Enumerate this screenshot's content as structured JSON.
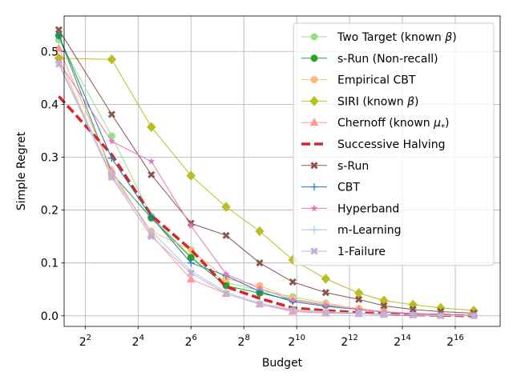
{
  "chart_data": {
    "type": "line",
    "title": "",
    "xlabel": "Budget",
    "ylabel": "Simple Regret",
    "x_scale": "log2",
    "xlim": [
      1.2,
      17.7
    ],
    "ylim": [
      -0.02,
      0.567
    ],
    "x": [
      1,
      3,
      4.5,
      6,
      7.33,
      8.6,
      9.85,
      11.1,
      12.35,
      13.3,
      14.4,
      15.45,
      16.7
    ],
    "xticks": [
      {
        "exp": 2,
        "base": "2",
        "sup": "2"
      },
      {
        "exp": 4,
        "base": "2",
        "sup": "4"
      },
      {
        "exp": 6,
        "base": "2",
        "sup": "6"
      },
      {
        "exp": 8,
        "base": "2",
        "sup": "8"
      },
      {
        "exp": 10,
        "base": "2",
        "sup": "10"
      },
      {
        "exp": 12,
        "base": "2",
        "sup": "12"
      },
      {
        "exp": 14,
        "base": "2",
        "sup": "14"
      },
      {
        "exp": 16,
        "base": "2",
        "sup": "16"
      }
    ],
    "yticks": [
      {
        "v": 0.0,
        "label": "0.0"
      },
      {
        "v": 0.1,
        "label": "0.1"
      },
      {
        "v": 0.2,
        "label": "0.2"
      },
      {
        "v": 0.3,
        "label": "0.3"
      },
      {
        "v": 0.4,
        "label": "0.4"
      },
      {
        "v": 0.5,
        "label": "0.5"
      }
    ],
    "grid": true,
    "legend": {
      "position": "top-right"
    },
    "series": [
      {
        "name": "Two Target (known ",
        "name_symbol": "β",
        "name_end": ")",
        "color": "#98df8a",
        "marker": "circle",
        "dash": "",
        "width": 1,
        "values": [
          0.522,
          0.34,
          0.188,
          0.112,
          0.063,
          0.048,
          0.036,
          0.024,
          0.013,
          0.008,
          0.005,
          0.003,
          0.002
        ]
      },
      {
        "name": "s-Run (Non-recall)",
        "name_symbol": "",
        "name_end": "",
        "color": "#2ca02c",
        "marker": "circle",
        "dash": "",
        "width": 1,
        "values": [
          0.53,
          0.27,
          0.185,
          0.11,
          0.057,
          0.043,
          0.03,
          0.02,
          0.012,
          0.007,
          0.004,
          0.002,
          0.001
        ]
      },
      {
        "name": "Empirical CBT",
        "name_symbol": "",
        "name_end": "",
        "color": "#ffbb78",
        "marker": "circle",
        "dash": "",
        "width": 1,
        "values": [
          0.487,
          0.263,
          0.16,
          0.125,
          0.07,
          0.057,
          0.032,
          0.022,
          0.014,
          0.008,
          0.005,
          0.003,
          0.002
        ]
      },
      {
        "name": "SIRI (known ",
        "name_symbol": "β",
        "name_end": ")",
        "color": "#bcbd22",
        "marker": "diamond",
        "dash": "",
        "width": 1,
        "values": [
          0.487,
          0.485,
          0.357,
          0.265,
          0.206,
          0.16,
          0.106,
          0.07,
          0.043,
          0.029,
          0.021,
          0.015,
          0.01
        ]
      },
      {
        "name": "Chernoff (known ",
        "name_symbol": "μ",
        "name_sub": "*",
        "name_end": ")",
        "color": "#ff9896",
        "marker": "triangle",
        "dash": "",
        "width": 1,
        "values": [
          0.506,
          0.275,
          0.153,
          0.069,
          0.042,
          0.022,
          0.008,
          0.005,
          0.004,
          0.003,
          0.002,
          0.001,
          0.001
        ]
      },
      {
        "name": "Successive Halving",
        "name_symbol": "",
        "name_end": "",
        "color": "#d62728",
        "marker": "none",
        "dash": "11 5",
        "width": 3.5,
        "values": [
          0.415,
          0.305,
          0.19,
          0.125,
          0.055,
          0.033,
          0.015,
          0.01,
          0.006,
          0.004,
          0.002,
          0.001,
          0.0
        ]
      },
      {
        "name": "s-Run",
        "name_symbol": "",
        "name_end": "",
        "color": "#8c564b",
        "marker": "x",
        "dash": "",
        "width": 1,
        "values": [
          0.541,
          0.381,
          0.267,
          0.175,
          0.152,
          0.1,
          0.064,
          0.044,
          0.031,
          0.019,
          0.012,
          0.008,
          0.005
        ]
      },
      {
        "name": "CBT",
        "name_symbol": "",
        "name_end": "",
        "color": "#1f77b4",
        "marker": "plus",
        "dash": "",
        "width": 1,
        "values": [
          0.53,
          0.298,
          0.187,
          0.1,
          0.076,
          0.046,
          0.027,
          0.018,
          0.012,
          0.007,
          0.004,
          0.002,
          0.001
        ]
      },
      {
        "name": "Hyperband",
        "name_symbol": "",
        "name_end": "",
        "color": "#e377c2",
        "marker": "star",
        "dash": "",
        "width": 1,
        "values": [
          0.48,
          0.33,
          0.292,
          0.17,
          0.079,
          0.052,
          0.03,
          0.02,
          0.012,
          0.007,
          0.004,
          0.002,
          0.001
        ]
      },
      {
        "name": "m-Learning",
        "name_symbol": "",
        "name_end": "",
        "color": "#aec7e8",
        "marker": "plus",
        "dash": "",
        "width": 1,
        "values": [
          0.478,
          0.268,
          0.16,
          0.085,
          0.045,
          0.024,
          0.012,
          0.008,
          0.005,
          0.003,
          0.002,
          0.001,
          0.001
        ]
      },
      {
        "name": "1-Failure",
        "name_symbol": "",
        "name_end": "",
        "color": "#c5b0d5",
        "marker": "x",
        "dash": "",
        "width": 1,
        "values": [
          0.476,
          0.262,
          0.15,
          0.081,
          0.042,
          0.022,
          0.01,
          0.006,
          0.004,
          0.002,
          0.001,
          0.0,
          0.0
        ]
      }
    ]
  }
}
